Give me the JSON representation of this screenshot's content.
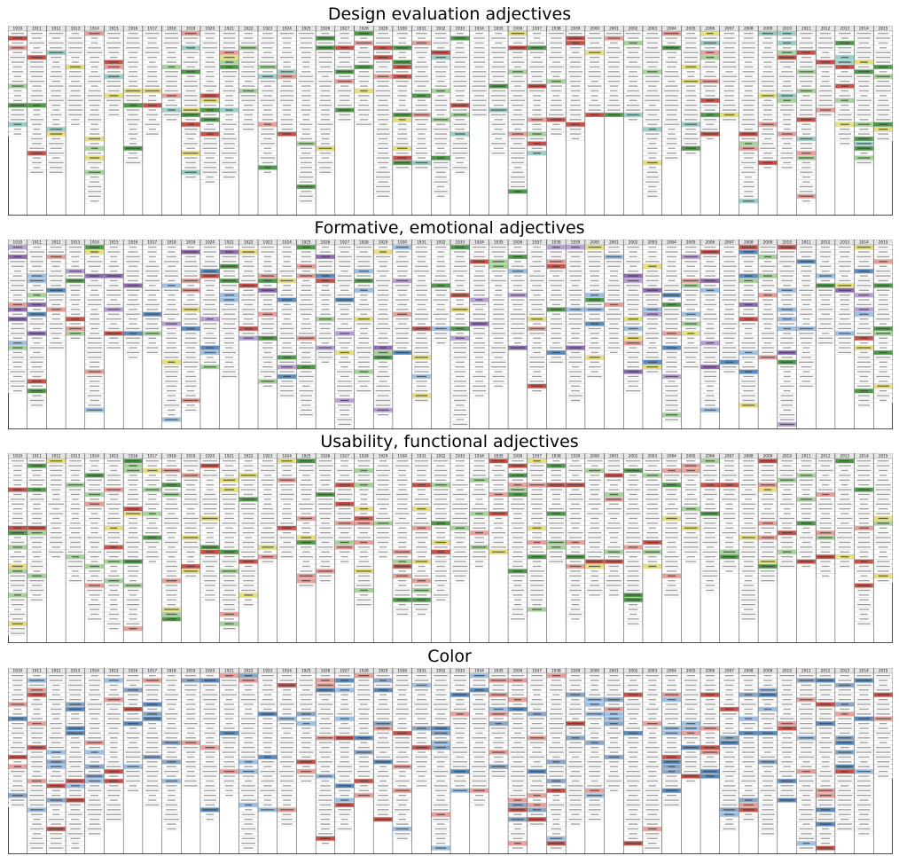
{
  "panels": [
    {
      "title": "Design evaluation adjectives",
      "highlight_palette": [
        "#c8514a",
        "#e9a09a",
        "#e8e07a",
        "#4f9a4a",
        "#a6d49a",
        "#9ad0c8"
      ],
      "base_rows": 18,
      "extra_rows_max": 19
    },
    {
      "title": "Formative, emotional adjectives",
      "highlight_palette": [
        "#c8514a",
        "#e9a09a",
        "#e8e07a",
        "#4f9a4a",
        "#a6d49a",
        "#8e6bb3",
        "#b9a1d8",
        "#5a8cc0",
        "#9ec2e6"
      ],
      "base_rows": 20,
      "extra_rows_max": 19
    },
    {
      "title": "Usability, functional adjectives",
      "highlight_palette": [
        "#c8514a",
        "#e9a09a",
        "#e8e07a",
        "#4f9a4a",
        "#a6d49a"
      ],
      "base_rows": 20,
      "extra_rows_max": 18
    },
    {
      "title": "Color",
      "highlight_palette": [
        "#c8514a",
        "#e9a09a",
        "#5a8cc0",
        "#9ec2e6",
        "#8aa7c8"
      ],
      "base_rows": 22,
      "extra_rows_max": 18
    }
  ],
  "column_headers": [
    "1910",
    "1911",
    "1912",
    "1913",
    "1914",
    "1915",
    "1916",
    "1917",
    "1918",
    "1919",
    "1920",
    "1921",
    "1922",
    "1923",
    "1924",
    "1925",
    "1926",
    "1927",
    "1928",
    "1929",
    "1930",
    "1931",
    "1932",
    "1933",
    "1934",
    "1935",
    "1936",
    "1937",
    "1938",
    "1939",
    "2000",
    "2001",
    "2002",
    "2003",
    "2004",
    "2005",
    "2006",
    "2007",
    "2008",
    "2009",
    "2010",
    "2011",
    "2012",
    "2013",
    "2014",
    "2015"
  ]
}
